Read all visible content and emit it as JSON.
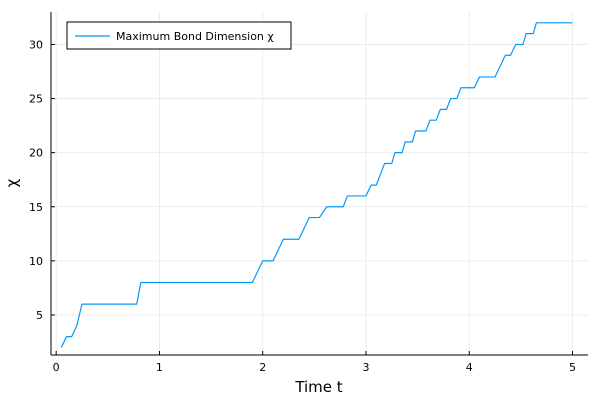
{
  "chart_data": {
    "type": "line",
    "title": "",
    "xlabel": "Time t",
    "ylabel": "χ",
    "xlim": [
      -0.05,
      5.15
    ],
    "ylim": [
      1.3,
      33.0
    ],
    "xticks": [
      0,
      1,
      2,
      3,
      4,
      5
    ],
    "yticks": [
      5,
      10,
      15,
      20,
      25,
      30
    ],
    "grid": true,
    "legend_position": "top-left",
    "colors": {
      "series": "#009AFA",
      "grid": "#E8E8E8",
      "axis": "#000000"
    },
    "series": [
      {
        "name": "Maximum Bond Dimension χ",
        "color": "#009AFA",
        "points": [
          [
            0.05,
            2
          ],
          [
            0.1,
            3
          ],
          [
            0.15,
            3
          ],
          [
            0.2,
            4
          ],
          [
            0.25,
            6
          ],
          [
            0.3,
            6
          ],
          [
            0.78,
            6
          ],
          [
            0.82,
            8
          ],
          [
            0.9,
            8
          ],
          [
            1.0,
            8
          ],
          [
            1.2,
            8
          ],
          [
            1.5,
            8
          ],
          [
            1.9,
            8
          ],
          [
            2.0,
            10
          ],
          [
            2.1,
            10
          ],
          [
            2.2,
            12
          ],
          [
            2.35,
            12
          ],
          [
            2.45,
            14
          ],
          [
            2.55,
            14
          ],
          [
            2.62,
            15
          ],
          [
            2.78,
            15
          ],
          [
            2.82,
            16
          ],
          [
            3.0,
            16
          ],
          [
            3.05,
            17
          ],
          [
            3.1,
            17
          ],
          [
            3.18,
            19
          ],
          [
            3.25,
            19
          ],
          [
            3.28,
            20
          ],
          [
            3.35,
            20
          ],
          [
            3.38,
            21
          ],
          [
            3.45,
            21
          ],
          [
            3.48,
            22
          ],
          [
            3.58,
            22
          ],
          [
            3.62,
            23
          ],
          [
            3.68,
            23
          ],
          [
            3.72,
            24
          ],
          [
            3.78,
            24
          ],
          [
            3.82,
            25
          ],
          [
            3.88,
            25
          ],
          [
            3.92,
            26
          ],
          [
            4.05,
            26
          ],
          [
            4.1,
            27
          ],
          [
            4.25,
            27
          ],
          [
            4.35,
            29
          ],
          [
            4.4,
            29
          ],
          [
            4.45,
            30
          ],
          [
            4.52,
            30
          ],
          [
            4.55,
            31
          ],
          [
            4.62,
            31
          ],
          [
            4.65,
            32
          ],
          [
            5.0,
            32
          ]
        ]
      }
    ]
  }
}
